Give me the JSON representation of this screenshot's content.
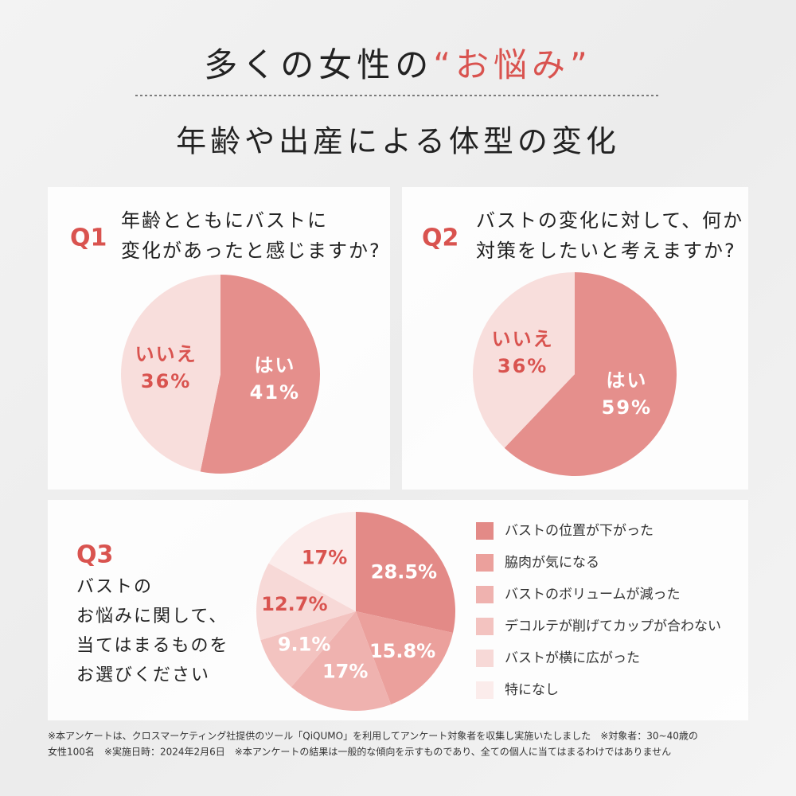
{
  "header": {
    "title": "多くの女性の",
    "title_emphasis": "“お悩み”",
    "subtitle": "年齢や出産による体型の変化"
  },
  "chart_data": [
    {
      "type": "pie",
      "label": "Q1",
      "title_lines": [
        "年齢とともにバストに",
        "変化があったと感じますか?"
      ],
      "categories": [
        "はい",
        "いいえ"
      ],
      "values": [
        41,
        36
      ],
      "value_labels": [
        "41%",
        "36%"
      ],
      "colors": [
        "#e58f8c",
        "#f8dedc"
      ],
      "label_colors": [
        "#ffffff",
        "#d9534f"
      ]
    },
    {
      "type": "pie",
      "label": "Q2",
      "title_lines": [
        "バストの変化に対して、何か",
        "対策をしたいと考えますか?"
      ],
      "categories": [
        "はい",
        "いいえ"
      ],
      "values": [
        59,
        36
      ],
      "value_labels": [
        "59%",
        "36%"
      ],
      "colors": [
        "#e58f8c",
        "#f8dedc"
      ],
      "label_colors": [
        "#ffffff",
        "#d9534f"
      ]
    },
    {
      "type": "pie",
      "label": "Q3",
      "title_lines": [
        "バストの",
        "お悩みに関して、",
        "当てはまるものを",
        "お選びください"
      ],
      "categories": [
        "バストの位置が下がった",
        "脇肉が気になる",
        "バストのボリュームが減った",
        "デコルテが削げてカップが合わない",
        "バストが横に広がった",
        "特になし"
      ],
      "values": [
        28.5,
        15.8,
        17,
        9.1,
        12.7,
        17
      ],
      "value_labels": [
        "28.5%",
        "15.8%",
        "17%",
        "9.1%",
        "12.7%",
        "17%"
      ],
      "colors": [
        "#e38a87",
        "#eba09c",
        "#efb2af",
        "#f3c3c0",
        "#f7d9d7",
        "#fbeceb"
      ],
      "label_colors": [
        "#ffffff",
        "#ffffff",
        "#ffffff",
        "#ffffff",
        "#d9534f",
        "#d9534f"
      ],
      "legend": "right"
    }
  ],
  "footnotes": [
    "※本アンケートは、クロスマーケティング社提供のツール「QiQUMO」を利用してアンケート対象者を収集し実施いたしました　※対象者：30~40歳の",
    "女性100名　※実施日時：2024年2月6日　※本アンケートの結果は一般的な傾向を示すものであり、全ての個人に当てはまるわけではありません"
  ]
}
